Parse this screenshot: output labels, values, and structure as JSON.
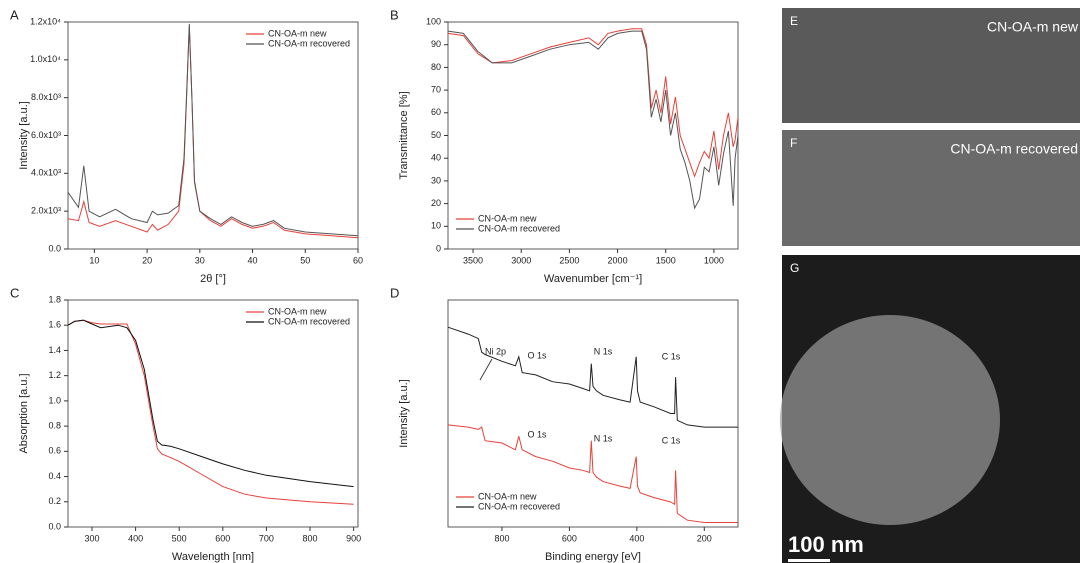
{
  "chart_data": [
    {
      "type": "line",
      "panel": "A",
      "xlabel": "2θ [°]",
      "ylabel": "Intensity [a.u.]",
      "legend": "upper right",
      "x": [
        5,
        7,
        8,
        9,
        11,
        14,
        17,
        20,
        21,
        22,
        24,
        26,
        27,
        27.5,
        28,
        28.5,
        29,
        30,
        32,
        34,
        36,
        38,
        40,
        42,
        44,
        46,
        50,
        55,
        60
      ],
      "series": [
        {
          "name": "CN-OA-m new",
          "color": "#e8403a",
          "values": [
            1600,
            1500,
            2500,
            1400,
            1200,
            1500,
            1200,
            900,
            1300,
            1000,
            1300,
            2000,
            4500,
            8000,
            11800,
            8000,
            3500,
            2000,
            1500,
            1200,
            1600,
            1300,
            1100,
            1200,
            1400,
            1000,
            800,
            700,
            600
          ]
        },
        {
          "name": "CN-OA-m recovered",
          "color": "#555555",
          "values": [
            3000,
            2200,
            4400,
            2000,
            1700,
            2100,
            1600,
            1400,
            2000,
            1800,
            1900,
            2300,
            4800,
            8200,
            11900,
            8000,
            3600,
            2000,
            1600,
            1300,
            1700,
            1400,
            1200,
            1300,
            1500,
            1100,
            900,
            800,
            700
          ]
        }
      ],
      "xlim": [
        5,
        60
      ],
      "xticks": [
        10,
        20,
        30,
        40,
        50,
        60
      ],
      "ylim": [
        0,
        12000
      ],
      "yticks": [
        {
          "value": 0,
          "label": "0.0"
        },
        {
          "value": 2000,
          "label": "2.0x10³"
        },
        {
          "value": 4000,
          "label": "4.0x10³"
        },
        {
          "value": 6000,
          "label": "6.0x10³"
        },
        {
          "value": 8000,
          "label": "8.0x10³"
        },
        {
          "value": 10000,
          "label": "1.0x10⁴"
        },
        {
          "value": 12000,
          "label": "1.2x10⁴"
        }
      ]
    },
    {
      "type": "line",
      "panel": "B",
      "xlabel": "Wavenumber [cm⁻¹]",
      "ylabel": "Transmittance [%]",
      "legend": "lower left",
      "x": [
        3760,
        3600,
        3450,
        3300,
        3100,
        2900,
        2700,
        2500,
        2300,
        2200,
        2100,
        2000,
        1850,
        1750,
        1700,
        1650,
        1600,
        1550,
        1500,
        1450,
        1400,
        1350,
        1300,
        1250,
        1200,
        1150,
        1100,
        1050,
        1000,
        950,
        900,
        850,
        800,
        780,
        750
      ],
      "series": [
        {
          "name": "CN-OA-m new",
          "color": "#e8403a",
          "values": [
            95,
            94,
            86,
            82,
            83,
            86,
            89,
            91,
            93,
            90,
            95,
            96,
            97,
            97,
            90,
            62,
            70,
            60,
            76,
            55,
            67,
            50,
            44,
            38,
            32,
            38,
            43,
            40,
            52,
            35,
            50,
            60,
            45,
            48,
            58
          ]
        },
        {
          "name": "CN-OA-m recovered",
          "color": "#555555",
          "values": [
            96,
            95,
            87,
            82,
            82,
            85,
            88,
            90,
            91,
            88,
            93,
            95,
            96,
            96,
            88,
            58,
            66,
            56,
            70,
            50,
            60,
            44,
            38,
            30,
            18,
            22,
            36,
            34,
            45,
            28,
            42,
            52,
            19,
            40,
            50
          ]
        }
      ],
      "xlim": [
        3760,
        750
      ],
      "xticks": [
        3500,
        3000,
        2500,
        2000,
        1500,
        1000
      ],
      "ylim": [
        0,
        100
      ],
      "yticks": [
        0,
        10,
        20,
        30,
        40,
        50,
        60,
        70,
        80,
        90,
        100
      ]
    },
    {
      "type": "line",
      "panel": "C",
      "xlabel": "Wavelength [nm]",
      "ylabel": "Absorption [a.u.]",
      "legend": "upper right",
      "x": [
        245,
        260,
        280,
        300,
        320,
        340,
        360,
        380,
        400,
        420,
        440,
        450,
        460,
        480,
        500,
        550,
        600,
        650,
        700,
        800,
        900
      ],
      "series": [
        {
          "name": "CN-OA-m new",
          "color": "#e8403a",
          "values": [
            1.6,
            1.63,
            1.64,
            1.62,
            1.61,
            1.61,
            1.61,
            1.61,
            1.45,
            1.2,
            0.8,
            0.62,
            0.58,
            0.55,
            0.52,
            0.42,
            0.32,
            0.26,
            0.23,
            0.2,
            0.18
          ]
        },
        {
          "name": "CN-OA-m recovered",
          "color": "#111111",
          "values": [
            1.6,
            1.63,
            1.64,
            1.61,
            1.58,
            1.59,
            1.6,
            1.58,
            1.48,
            1.25,
            0.85,
            0.68,
            0.65,
            0.64,
            0.62,
            0.56,
            0.5,
            0.45,
            0.41,
            0.36,
            0.32
          ]
        }
      ],
      "xlim": [
        245,
        910
      ],
      "xticks": [
        300,
        400,
        500,
        600,
        700,
        800,
        900
      ],
      "ylim": [
        0,
        1.8
      ],
      "yticks": [
        {
          "value": 0,
          "label": "0.0"
        },
        0.2,
        0.4,
        0.6,
        0.8,
        {
          "value": 1,
          "label": "1.0"
        },
        1.2,
        1.4,
        1.6,
        1.8
      ]
    },
    {
      "type": "line",
      "panel": "D",
      "xlabel": "Binding energy [eV]",
      "ylabel": "Intensity [a.u.]",
      "legend": "lower left",
      "annotations": [
        "Ni 2p",
        "O 1s",
        "N 1s",
        "C 1s",
        "O 1s",
        "N 1s",
        "C 1s"
      ],
      "x": [
        960,
        900,
        870,
        860,
        850,
        800,
        760,
        750,
        740,
        700,
        650,
        600,
        560,
        540,
        535,
        530,
        520,
        500,
        450,
        420,
        402,
        398,
        390,
        350,
        300,
        288,
        285,
        280,
        250,
        200,
        150,
        100
      ],
      "series": [
        {
          "name": "CN-OA-m new",
          "color": "#e8403a",
          "values": [
            0.45,
            0.44,
            0.43,
            0.44,
            0.38,
            0.37,
            0.34,
            0.4,
            0.34,
            0.31,
            0.29,
            0.26,
            0.25,
            0.24,
            0.38,
            0.24,
            0.22,
            0.2,
            0.18,
            0.17,
            0.31,
            0.18,
            0.15,
            0.13,
            0.11,
            0.1,
            0.25,
            0.06,
            0.03,
            0.02,
            0.02,
            0.02
          ]
        },
        {
          "name": "CN-OA-m recovered",
          "color": "#222222",
          "values": [
            0.88,
            0.85,
            0.83,
            0.77,
            0.76,
            0.73,
            0.71,
            0.75,
            0.68,
            0.67,
            0.64,
            0.63,
            0.61,
            0.6,
            0.72,
            0.62,
            0.6,
            0.58,
            0.56,
            0.55,
            0.75,
            0.6,
            0.55,
            0.53,
            0.5,
            0.5,
            0.66,
            0.47,
            0.45,
            0.44,
            0.44,
            0.44
          ]
        }
      ],
      "xlim": [
        960,
        100
      ],
      "xticks": [
        800,
        600,
        400,
        200
      ],
      "ylim": [
        0,
        1
      ]
    }
  ],
  "images": [
    {
      "label": "E",
      "caption": "CN-OA-m new"
    },
    {
      "label": "F",
      "caption": "CN-OA-m recovered"
    },
    {
      "label": "G",
      "caption": "100 nm"
    }
  ]
}
